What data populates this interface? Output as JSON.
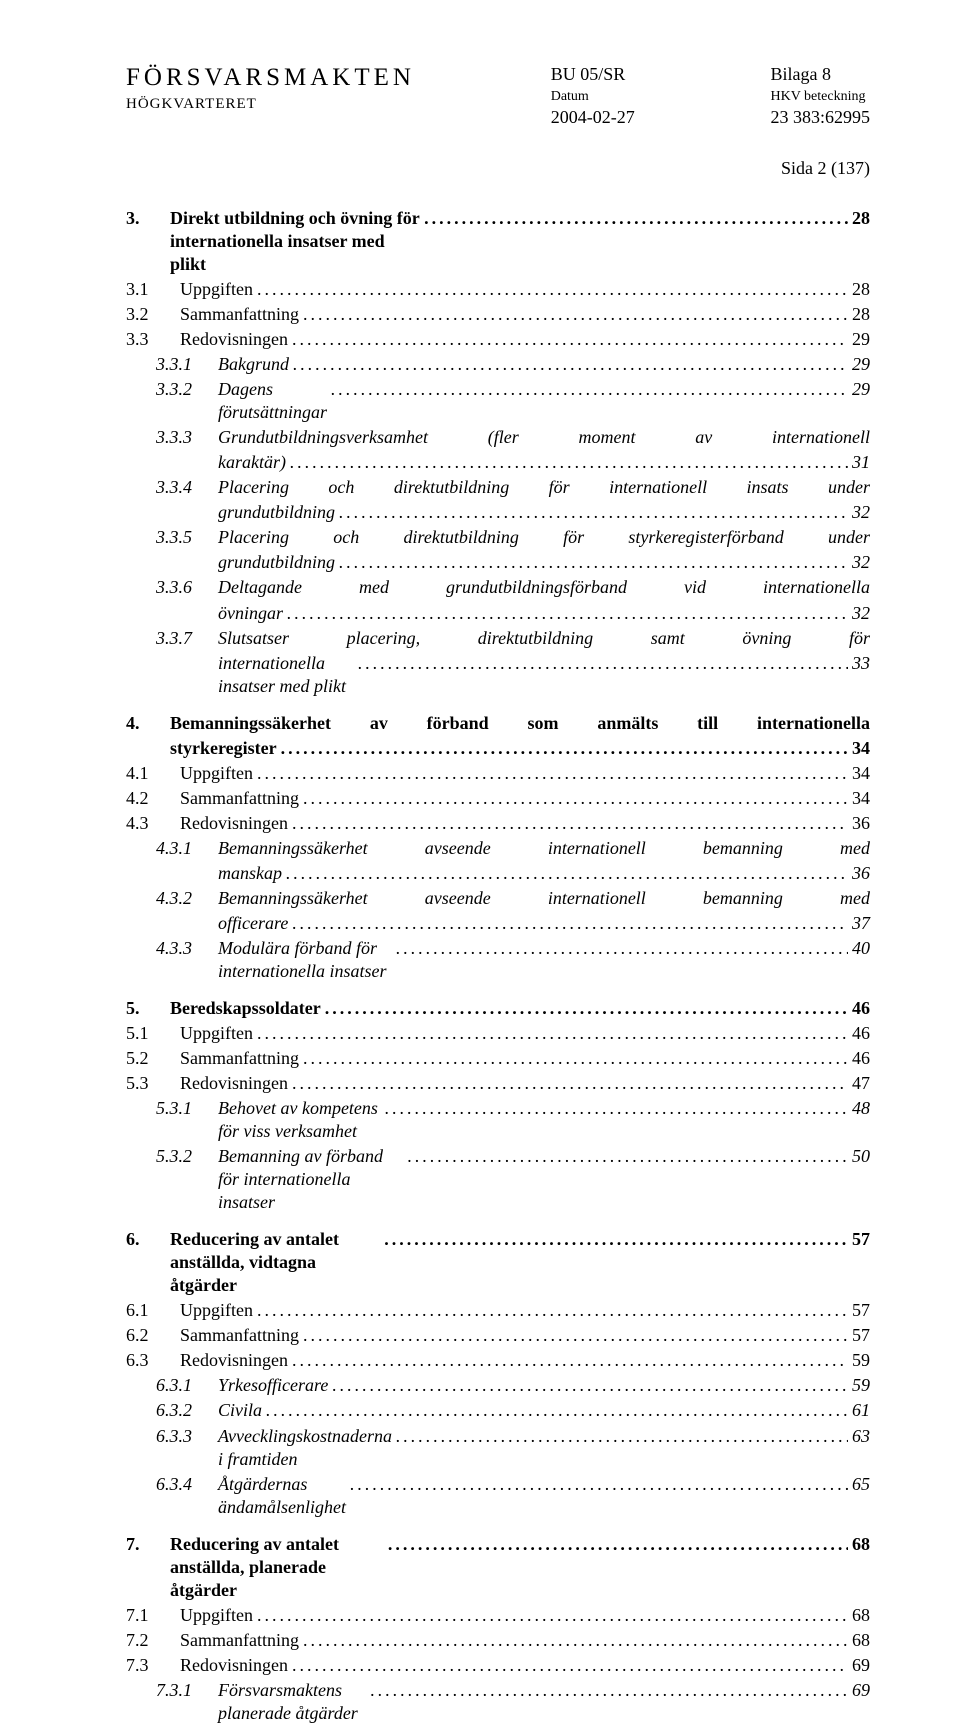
{
  "header": {
    "org_title": "FÖRSVARSMAKTEN",
    "org_sub": "HÖGKVARTERET",
    "mid_line1": "BU 05/SR",
    "mid_line2": "Datum",
    "mid_line3": "2004-02-27",
    "right_line1": "Bilaga 8",
    "right_line2": "HKV beteckning",
    "right_line3": "23 383:62995",
    "page_no": "Sida 2 (137)"
  },
  "leaders": "...................................................................................................................",
  "toc": [
    {
      "n": "3.",
      "t": "Direkt utbildning och övning för internationella insatser med plikt",
      "p": "28",
      "lvl": "h",
      "bold": true,
      "wrap": false
    },
    {
      "n": "3.1",
      "t": "Uppgiften",
      "p": "28",
      "lvl": "1"
    },
    {
      "n": "3.2",
      "t": "Sammanfattning",
      "p": "28",
      "lvl": "1"
    },
    {
      "n": "3.3",
      "t": "Redovisningen",
      "p": "29",
      "lvl": "1"
    },
    {
      "n": "3.3.1",
      "t": "Bakgrund",
      "p": "29",
      "lvl": "2",
      "italic": true
    },
    {
      "n": "3.3.2",
      "t": "Dagens förutsättningar",
      "p": "29",
      "lvl": "2",
      "italic": true
    },
    {
      "n": "3.3.3",
      "t1": "Grundutbildningsverksamhet (fler moment av internationell",
      "t2": "karaktär)",
      "p": "31",
      "lvl": "2",
      "italic": true,
      "wrap": true
    },
    {
      "n": "3.3.4",
      "t1": "Placering och direktutbildning för internationell insats under",
      "t2": "grundutbildning",
      "p": "32",
      "lvl": "2",
      "italic": true,
      "wrap": true
    },
    {
      "n": "3.3.5",
      "t1": "Placering och direktutbildning för styrkeregisterförband under",
      "t2": "grundutbildning",
      "p": "32",
      "lvl": "2",
      "italic": true,
      "wrap": true
    },
    {
      "n": "3.3.6",
      "t1": "Deltagande med grundutbildningsförband vid internationella",
      "t2": "övningar",
      "p": "32",
      "lvl": "2",
      "italic": true,
      "wrap": true
    },
    {
      "n": "3.3.7",
      "t1": "Slutsatser placering, direktutbildning samt övning för",
      "t2": "internationella insatser med plikt",
      "p": "33",
      "lvl": "2",
      "italic": true,
      "wrap": true
    },
    {
      "n": "4.",
      "t1": "Bemanningssäkerhet av förband som anmälts till internationella",
      "t2": "styrkeregister",
      "p": "34",
      "lvl": "h",
      "bold": true,
      "wrap": true
    },
    {
      "n": "4.1",
      "t": "Uppgiften",
      "p": "34",
      "lvl": "1"
    },
    {
      "n": "4.2",
      "t": "Sammanfattning",
      "p": "34",
      "lvl": "1"
    },
    {
      "n": "4.3",
      "t": "Redovisningen",
      "p": "36",
      "lvl": "1"
    },
    {
      "n": "4.3.1",
      "t1": "Bemanningssäkerhet avseende internationell bemanning med",
      "t2": "manskap",
      "p": "36",
      "lvl": "2",
      "italic": true,
      "wrap": true
    },
    {
      "n": "4.3.2",
      "t1": "Bemanningssäkerhet avseende internationell bemanning med",
      "t2": "officerare",
      "p": "37",
      "lvl": "2",
      "italic": true,
      "wrap": true
    },
    {
      "n": "4.3.3",
      "t": "Modulära förband för internationella insatser",
      "p": "40",
      "lvl": "2",
      "italic": true
    },
    {
      "n": "5.",
      "t": "Beredskapssoldater",
      "p": "46",
      "lvl": "h",
      "bold": true
    },
    {
      "n": "5.1",
      "t": "Uppgiften",
      "p": "46",
      "lvl": "1"
    },
    {
      "n": "5.2",
      "t": "Sammanfattning",
      "p": "46",
      "lvl": "1"
    },
    {
      "n": "5.3",
      "t": "Redovisningen",
      "p": "47",
      "lvl": "1"
    },
    {
      "n": "5.3.1",
      "t": "Behovet av kompetens för viss verksamhet",
      "p": "48",
      "lvl": "2",
      "italic": true
    },
    {
      "n": "5.3.2",
      "t": "Bemanning av förband för internationella insatser",
      "p": "50",
      "lvl": "2",
      "italic": true
    },
    {
      "n": "6.",
      "t": "Reducering av antalet anställda, vidtagna åtgärder",
      "p": "57",
      "lvl": "h",
      "bold": true
    },
    {
      "n": "6.1",
      "t": "Uppgiften",
      "p": "57",
      "lvl": "1"
    },
    {
      "n": "6.2",
      "t": "Sammanfattning",
      "p": "57",
      "lvl": "1"
    },
    {
      "n": "6.3",
      "t": "Redovisningen",
      "p": "59",
      "lvl": "1"
    },
    {
      "n": "6.3.1",
      "t": "Yrkesofficerare",
      "p": "59",
      "lvl": "2",
      "italic": true
    },
    {
      "n": "6.3.2",
      "t": "Civila",
      "p": "61",
      "lvl": "2",
      "italic": true
    },
    {
      "n": "6.3.3",
      "t": "Avvecklingskostnaderna i framtiden",
      "p": "63",
      "lvl": "2",
      "italic": true
    },
    {
      "n": "6.3.4",
      "t": "Åtgärdernas ändamålsenlighet",
      "p": "65",
      "lvl": "2",
      "italic": true
    },
    {
      "n": "7.",
      "t": "Reducering av antalet anställda, planerade åtgärder",
      "p": "68",
      "lvl": "h",
      "bold": true
    },
    {
      "n": "7.1",
      "t": "Uppgiften",
      "p": "68",
      "lvl": "1"
    },
    {
      "n": "7.2",
      "t": "Sammanfattning",
      "p": "68",
      "lvl": "1"
    },
    {
      "n": "7.3",
      "t": "Redovisningen",
      "p": "69",
      "lvl": "1"
    },
    {
      "n": "7.3.1",
      "t": "Försvarsmaktens planerade åtgärder",
      "p": "69",
      "lvl": "2",
      "italic": true
    }
  ],
  "section_breaks": [
    "4.",
    "5.",
    "6.",
    "7."
  ]
}
